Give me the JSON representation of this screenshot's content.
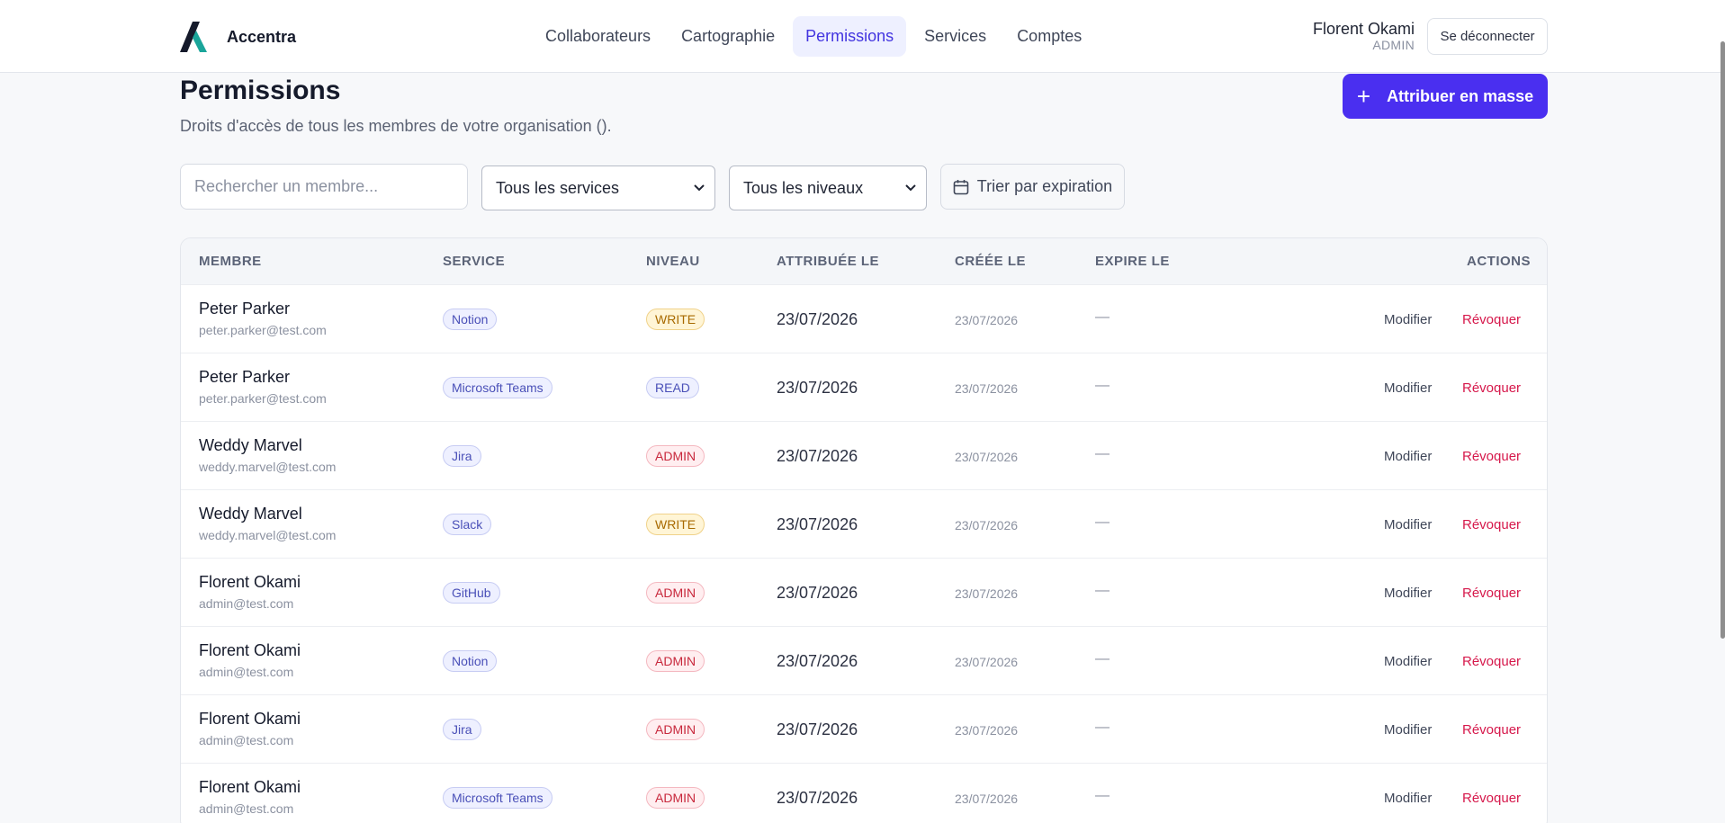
{
  "header": {
    "brand": "Accentra",
    "nav": [
      {
        "label": "Collaborateurs",
        "active": false
      },
      {
        "label": "Cartographie",
        "active": false
      },
      {
        "label": "Permissions",
        "active": true
      },
      {
        "label": "Services",
        "active": false
      },
      {
        "label": "Comptes",
        "active": false
      }
    ],
    "user_name": "Florent Okami",
    "user_role": "ADMIN",
    "logout_label": "Se déconnecter"
  },
  "page": {
    "title": "Permissions",
    "subtitle": "Droits d'accès de tous les membres de votre organisation ().",
    "bulk_label": "Attribuer en masse"
  },
  "filters": {
    "search_placeholder": "Rechercher un membre...",
    "service_select": "Tous les services",
    "level_select": "Tous les niveaux",
    "sort_label": "Trier par expiration"
  },
  "table": {
    "columns": [
      "MEMBRE",
      "SERVICE",
      "NIVEAU",
      "ATTRIBUÉE LE",
      "CRÉÉE LE",
      "EXPIRE LE",
      "ACTIONS"
    ],
    "edit_label": "Modifier",
    "revoke_label": "Révoquer",
    "rows": [
      {
        "name": "Peter Parker",
        "email": "peter.parker@test.com",
        "service": "Notion",
        "level": "WRITE",
        "assigned": "23/07/2026",
        "created": "23/07/2026",
        "expires": "—"
      },
      {
        "name": "Peter Parker",
        "email": "peter.parker@test.com",
        "service": "Microsoft Teams",
        "level": "READ",
        "assigned": "23/07/2026",
        "created": "23/07/2026",
        "expires": "—"
      },
      {
        "name": "Weddy Marvel",
        "email": "weddy.marvel@test.com",
        "service": "Jira",
        "level": "ADMIN",
        "assigned": "23/07/2026",
        "created": "23/07/2026",
        "expires": "—"
      },
      {
        "name": "Weddy Marvel",
        "email": "weddy.marvel@test.com",
        "service": "Slack",
        "level": "WRITE",
        "assigned": "23/07/2026",
        "created": "23/07/2026",
        "expires": "—"
      },
      {
        "name": "Florent Okami",
        "email": "admin@test.com",
        "service": "GitHub",
        "level": "ADMIN",
        "assigned": "23/07/2026",
        "created": "23/07/2026",
        "expires": "—"
      },
      {
        "name": "Florent Okami",
        "email": "admin@test.com",
        "service": "Notion",
        "level": "ADMIN",
        "assigned": "23/07/2026",
        "created": "23/07/2026",
        "expires": "—"
      },
      {
        "name": "Florent Okami",
        "email": "admin@test.com",
        "service": "Jira",
        "level": "ADMIN",
        "assigned": "23/07/2026",
        "created": "23/07/2026",
        "expires": "—"
      },
      {
        "name": "Florent Okami",
        "email": "admin@test.com",
        "service": "Microsoft Teams",
        "level": "ADMIN",
        "assigned": "23/07/2026",
        "created": "23/07/2026",
        "expires": "—"
      }
    ]
  }
}
